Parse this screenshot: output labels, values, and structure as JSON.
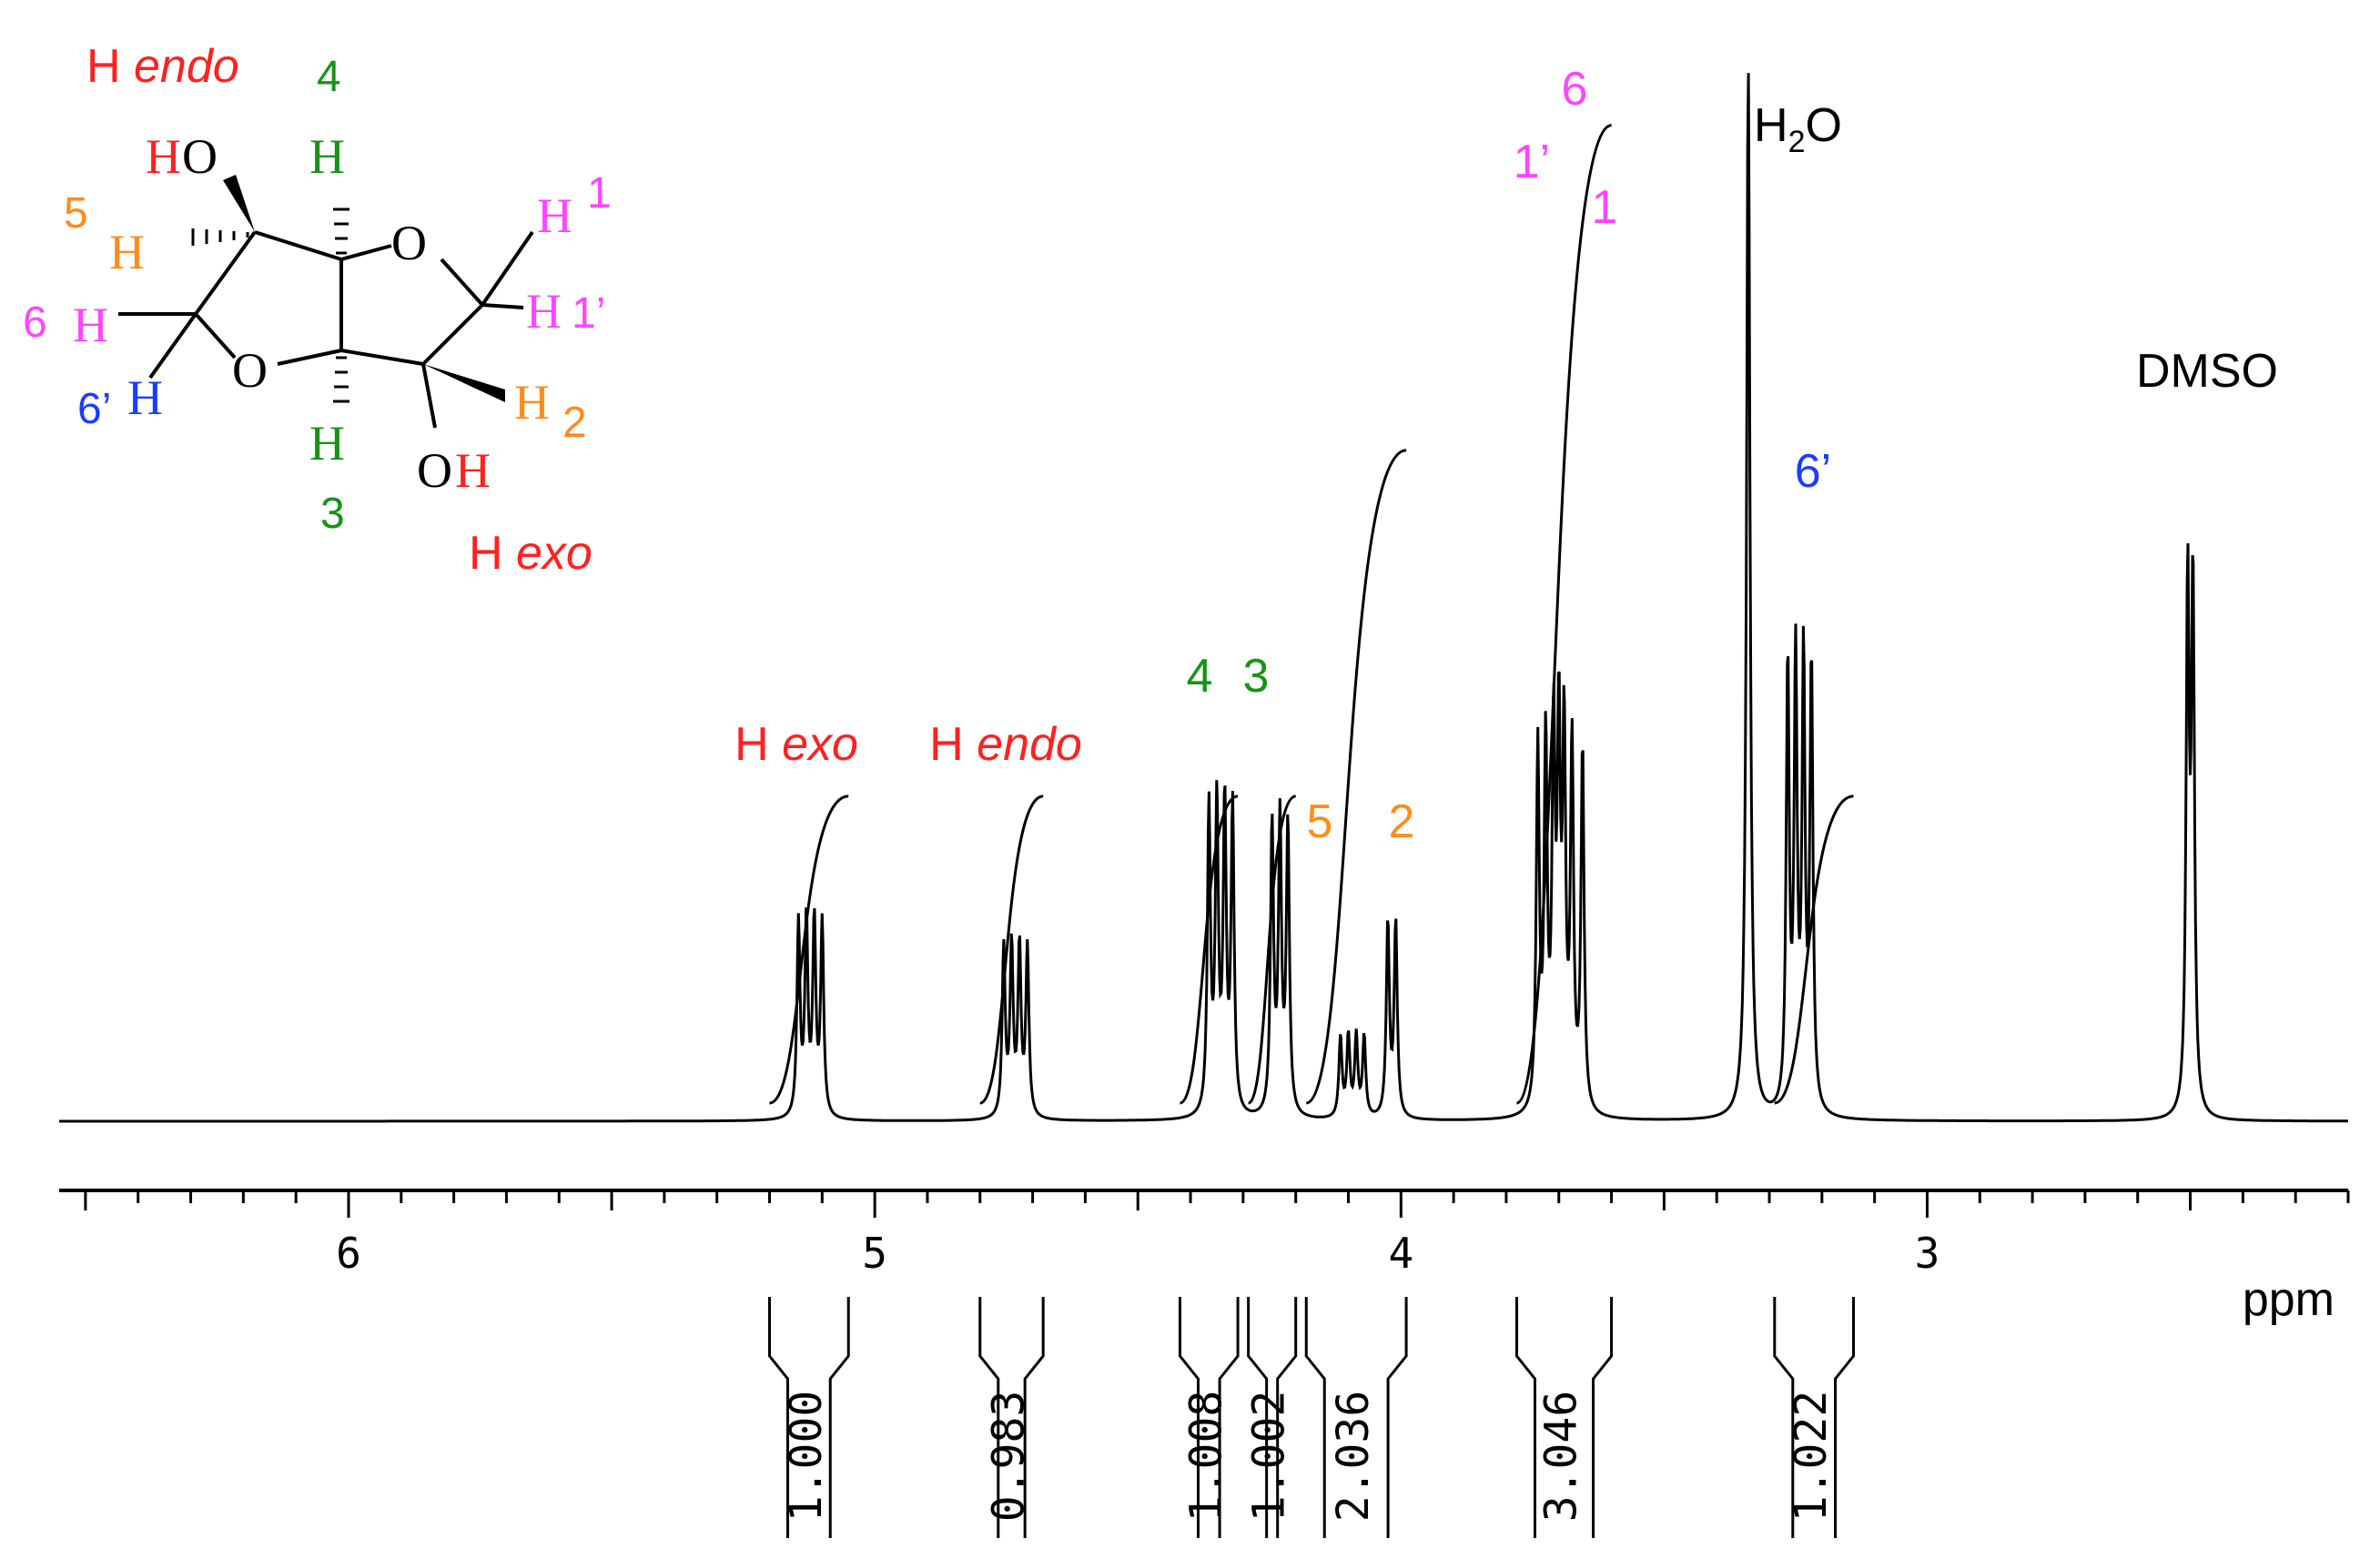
{
  "chart_data": {
    "type": "line",
    "title": "",
    "xlabel": "ppm",
    "ylabel": "",
    "x_reversed": true,
    "xlim": [
      6.55,
      2.2
    ],
    "x_ticks": [
      6,
      5,
      4,
      3
    ],
    "x_tick_labels": [
      "6",
      "5",
      "4",
      "3"
    ],
    "grid": false,
    "peaks": [
      {
        "name": "H exo",
        "shift": 5.12,
        "lines": [
          5.1,
          5.115,
          5.13,
          5.145
        ],
        "height": 0.24
      },
      {
        "name": "H endo",
        "shift": 4.73,
        "lines": [
          4.71,
          4.725,
          4.74,
          4.755
        ],
        "height": 0.21
      },
      {
        "name": "4",
        "shift": 4.34,
        "lines": [
          4.32,
          4.335,
          4.35,
          4.365
        ],
        "height": 0.38
      },
      {
        "name": "3",
        "shift": 4.23,
        "lines": [
          4.215,
          4.23,
          4.245
        ],
        "height": 0.36
      },
      {
        "name": "5",
        "shift": 4.09,
        "lines": [
          4.07,
          4.085,
          4.1,
          4.115
        ],
        "height": 0.1
      },
      {
        "name": "2",
        "shift": 4.02,
        "lines": [
          4.01,
          4.025
        ],
        "height": 0.24
      },
      {
        "name": "6/1/1'",
        "shift": 3.7,
        "lines": [
          3.655,
          3.675,
          3.69,
          3.7,
          3.71,
          3.725,
          3.74
        ],
        "height": 0.45
      },
      {
        "name": "H2O",
        "shift": 3.34,
        "lines": [
          3.34
        ],
        "height": 1.0
      },
      {
        "name": "6'",
        "shift": 3.24,
        "lines": [
          3.22,
          3.235,
          3.25,
          3.265
        ],
        "height": 0.55
      },
      {
        "name": "DMSO",
        "shift": 2.5,
        "lines": [
          2.495,
          2.505
        ],
        "height": 0.65
      }
    ],
    "integrals": [
      {
        "from": 5.2,
        "to": 5.05,
        "value": "1.000",
        "height": 0.31
      },
      {
        "from": 4.8,
        "to": 4.68,
        "value": "0.983",
        "height": 0.31
      },
      {
        "from": 4.42,
        "to": 4.31,
        "value": "1.008",
        "height": 0.31
      },
      {
        "from": 4.29,
        "to": 4.2,
        "value": "1.002",
        "height": 0.31
      },
      {
        "from": 4.18,
        "to": 3.99,
        "value": "2.036",
        "height": 0.64
      },
      {
        "from": 3.78,
        "to": 3.6,
        "value": "3.046",
        "height": 0.95
      },
      {
        "from": 3.29,
        "to": 3.14,
        "value": "1.022",
        "height": 0.31
      }
    ]
  },
  "annotations": [
    {
      "key": "exo_h",
      "text": "H ",
      "italic": "exo",
      "color": "#ff2020"
    },
    {
      "key": "endo_h",
      "text": "H ",
      "italic": "endo",
      "color": "#ff2020"
    },
    {
      "key": "p4",
      "text": "4",
      "color": "#179317"
    },
    {
      "key": "p3",
      "text": "3",
      "color": "#179317"
    },
    {
      "key": "p5",
      "text": "5",
      "color": "#ff8c1a"
    },
    {
      "key": "p2",
      "text": "2",
      "color": "#ff8c1a"
    },
    {
      "key": "p6",
      "text": "6",
      "color": "#ff45ff"
    },
    {
      "key": "p1p",
      "text": "1’",
      "color": "#ff45ff"
    },
    {
      "key": "p1",
      "text": "1",
      "color": "#ff45ff"
    },
    {
      "key": "h2o",
      "text": "H",
      "sub": "2",
      "tail": "O",
      "color": "#000000"
    },
    {
      "key": "p6p",
      "text": "6’",
      "color": "#1a3cff"
    },
    {
      "key": "dmso",
      "text": "DMSO",
      "color": "#000000"
    }
  ],
  "structure": {
    "endo_label": {
      "text": "H ",
      "italic": "endo"
    },
    "exo_label": {
      "text": "H ",
      "italic": "exo"
    },
    "ho_h": "H",
    "ho_o": "O",
    "ring_o1": "O",
    "ring_o2": "O",
    "oh_o": "O",
    "oh_h": "H",
    "h": "H",
    "h2_sub": "2",
    "n4": "4",
    "n3": "3",
    "n5": "5",
    "n6": "6",
    "n6p": "6’",
    "n1": "1",
    "n1p": "1’",
    "colors": {
      "red": "#ff2020",
      "green": "#179317",
      "orange": "#ff8c1a",
      "magenta": "#ff45ff",
      "blue": "#1a3cff"
    }
  }
}
